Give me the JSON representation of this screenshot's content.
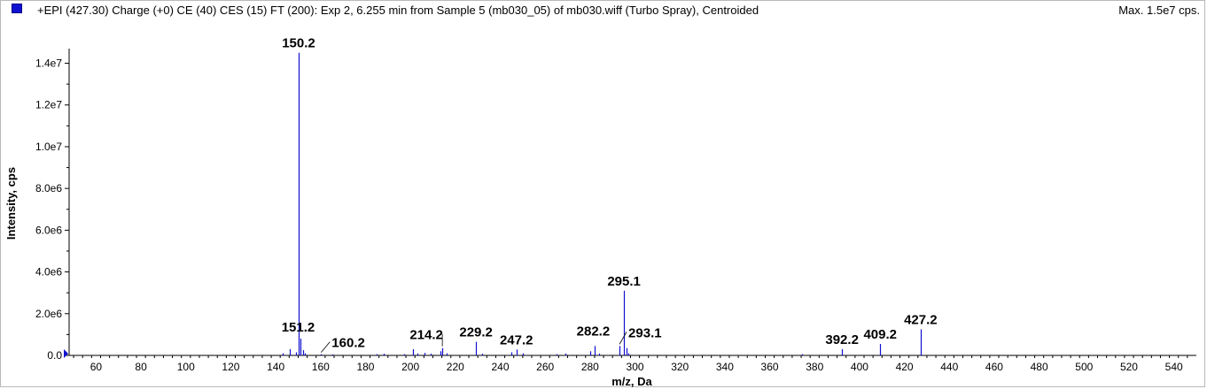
{
  "header": {
    "title": "+EPI (427.30) Charge (+0) CE (40) CES (15) FT (200): Exp 2, 6.255 min from Sample 5 (mb030_05) of mb030.wiff (Turbo Spray), Centroided",
    "max_label": "Max. 1.5e7 cps.",
    "series_color": "#1010d0"
  },
  "chart_data": {
    "type": "bar",
    "xlabel": "m/z, Da",
    "ylabel": "Intensity, cps",
    "xlim": [
      48,
      550
    ],
    "ylim": [
      0,
      14700000
    ],
    "x_ticks": [
      60,
      80,
      100,
      120,
      140,
      160,
      180,
      200,
      220,
      240,
      260,
      280,
      300,
      320,
      340,
      360,
      380,
      400,
      420,
      440,
      460,
      480,
      500,
      520,
      540
    ],
    "y_ticks": [
      {
        "value": 0,
        "label": "0.0"
      },
      {
        "value": 2000000,
        "label": "2.0e6"
      },
      {
        "value": 4000000,
        "label": "4.0e6"
      },
      {
        "value": 6000000,
        "label": "6.0e6"
      },
      {
        "value": 8000000,
        "label": "8.0e6"
      },
      {
        "value": 10000000,
        "label": "1.0e7"
      },
      {
        "value": 12000000,
        "label": "1.2e7"
      },
      {
        "value": 14000000,
        "label": "1.4e7"
      }
    ],
    "peaks": [
      {
        "mz": 143.1,
        "intensity": 100000
      },
      {
        "mz": 146.2,
        "intensity": 300000
      },
      {
        "mz": 149.1,
        "intensity": 150000
      },
      {
        "mz": 150.2,
        "intensity": 14500000,
        "label": "150.2"
      },
      {
        "mz": 151.2,
        "intensity": 800000,
        "label": "151.2"
      },
      {
        "mz": 152.2,
        "intensity": 250000
      },
      {
        "mz": 153.1,
        "intensity": 100000
      },
      {
        "mz": 160.2,
        "intensity": 60000,
        "label": "160.2"
      },
      {
        "mz": 165.1,
        "intensity": 50000
      },
      {
        "mz": 185.1,
        "intensity": 60000
      },
      {
        "mz": 188.2,
        "intensity": 80000
      },
      {
        "mz": 197.1,
        "intensity": 60000
      },
      {
        "mz": 201.1,
        "intensity": 300000
      },
      {
        "mz": 203.2,
        "intensity": 90000
      },
      {
        "mz": 206.1,
        "intensity": 120000
      },
      {
        "mz": 209.2,
        "intensity": 80000
      },
      {
        "mz": 213.2,
        "intensity": 200000
      },
      {
        "mz": 214.2,
        "intensity": 350000,
        "label": "214.2"
      },
      {
        "mz": 216.2,
        "intensity": 100000
      },
      {
        "mz": 229.2,
        "intensity": 650000,
        "label": "229.2"
      },
      {
        "mz": 232.1,
        "intensity": 80000
      },
      {
        "mz": 245.1,
        "intensity": 150000
      },
      {
        "mz": 247.2,
        "intensity": 280000,
        "label": "247.2"
      },
      {
        "mz": 250.1,
        "intensity": 100000
      },
      {
        "mz": 265.1,
        "intensity": 60000
      },
      {
        "mz": 269.2,
        "intensity": 90000
      },
      {
        "mz": 280.2,
        "intensity": 200000
      },
      {
        "mz": 282.2,
        "intensity": 450000,
        "label": "282.2"
      },
      {
        "mz": 284.2,
        "intensity": 90000
      },
      {
        "mz": 293.1,
        "intensity": 450000,
        "label": "293.1"
      },
      {
        "mz": 295.1,
        "intensity": 3100000,
        "label": "295.1"
      },
      {
        "mz": 296.1,
        "intensity": 350000
      },
      {
        "mz": 297.1,
        "intensity": 100000
      },
      {
        "mz": 374.2,
        "intensity": 60000
      },
      {
        "mz": 392.2,
        "intensity": 300000,
        "label": "392.2"
      },
      {
        "mz": 409.2,
        "intensity": 550000,
        "label": "409.2"
      },
      {
        "mz": 427.2,
        "intensity": 1250000,
        "label": "427.2"
      }
    ]
  }
}
